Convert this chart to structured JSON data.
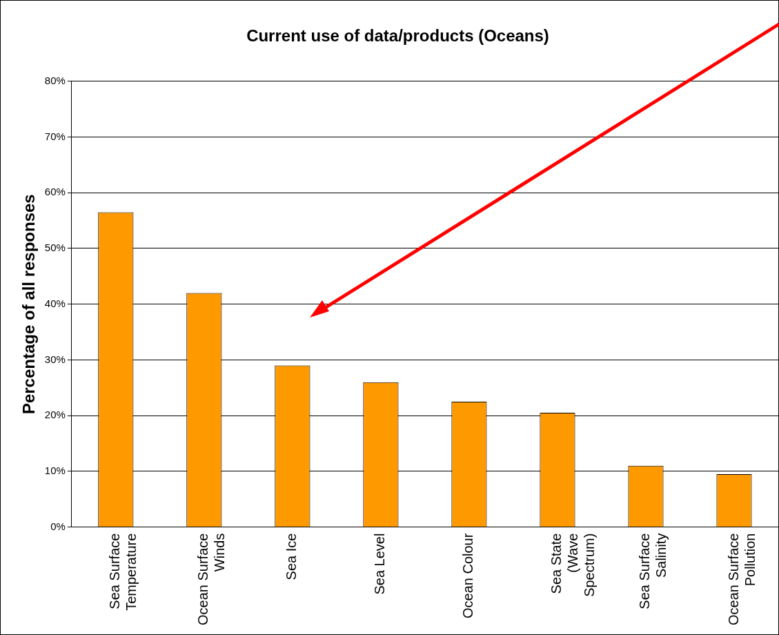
{
  "chart_data": {
    "type": "bar",
    "title": "Current use of data/products (Oceans)",
    "ylabel": "Percentage of all responses",
    "categories": [
      "Sea Surface Temperature",
      "Ocean Surface Winds",
      "Sea Ice",
      "Sea Level",
      "Ocean Colour",
      "Sea State (Wave Spectrum)",
      "Sea Surface Salinity",
      "Ocean Surface Pollution"
    ],
    "values": [
      56.5,
      42,
      29,
      26,
      22.5,
      20.5,
      11,
      9.5
    ],
    "color": "#ff9900",
    "ylim": [
      0,
      80
    ],
    "yticks": [
      {
        "value": 0,
        "label": "0%"
      },
      {
        "value": 10,
        "label": "10%"
      },
      {
        "value": 20,
        "label": "20%"
      },
      {
        "value": 30,
        "label": "30%"
      },
      {
        "value": 40,
        "label": "40%"
      },
      {
        "value": 50,
        "label": "50%"
      },
      {
        "value": 60,
        "label": "60%"
      },
      {
        "value": 70,
        "label": "70%"
      },
      {
        "value": 80,
        "label": "80%"
      }
    ],
    "grid": "y",
    "legend": false
  }
}
